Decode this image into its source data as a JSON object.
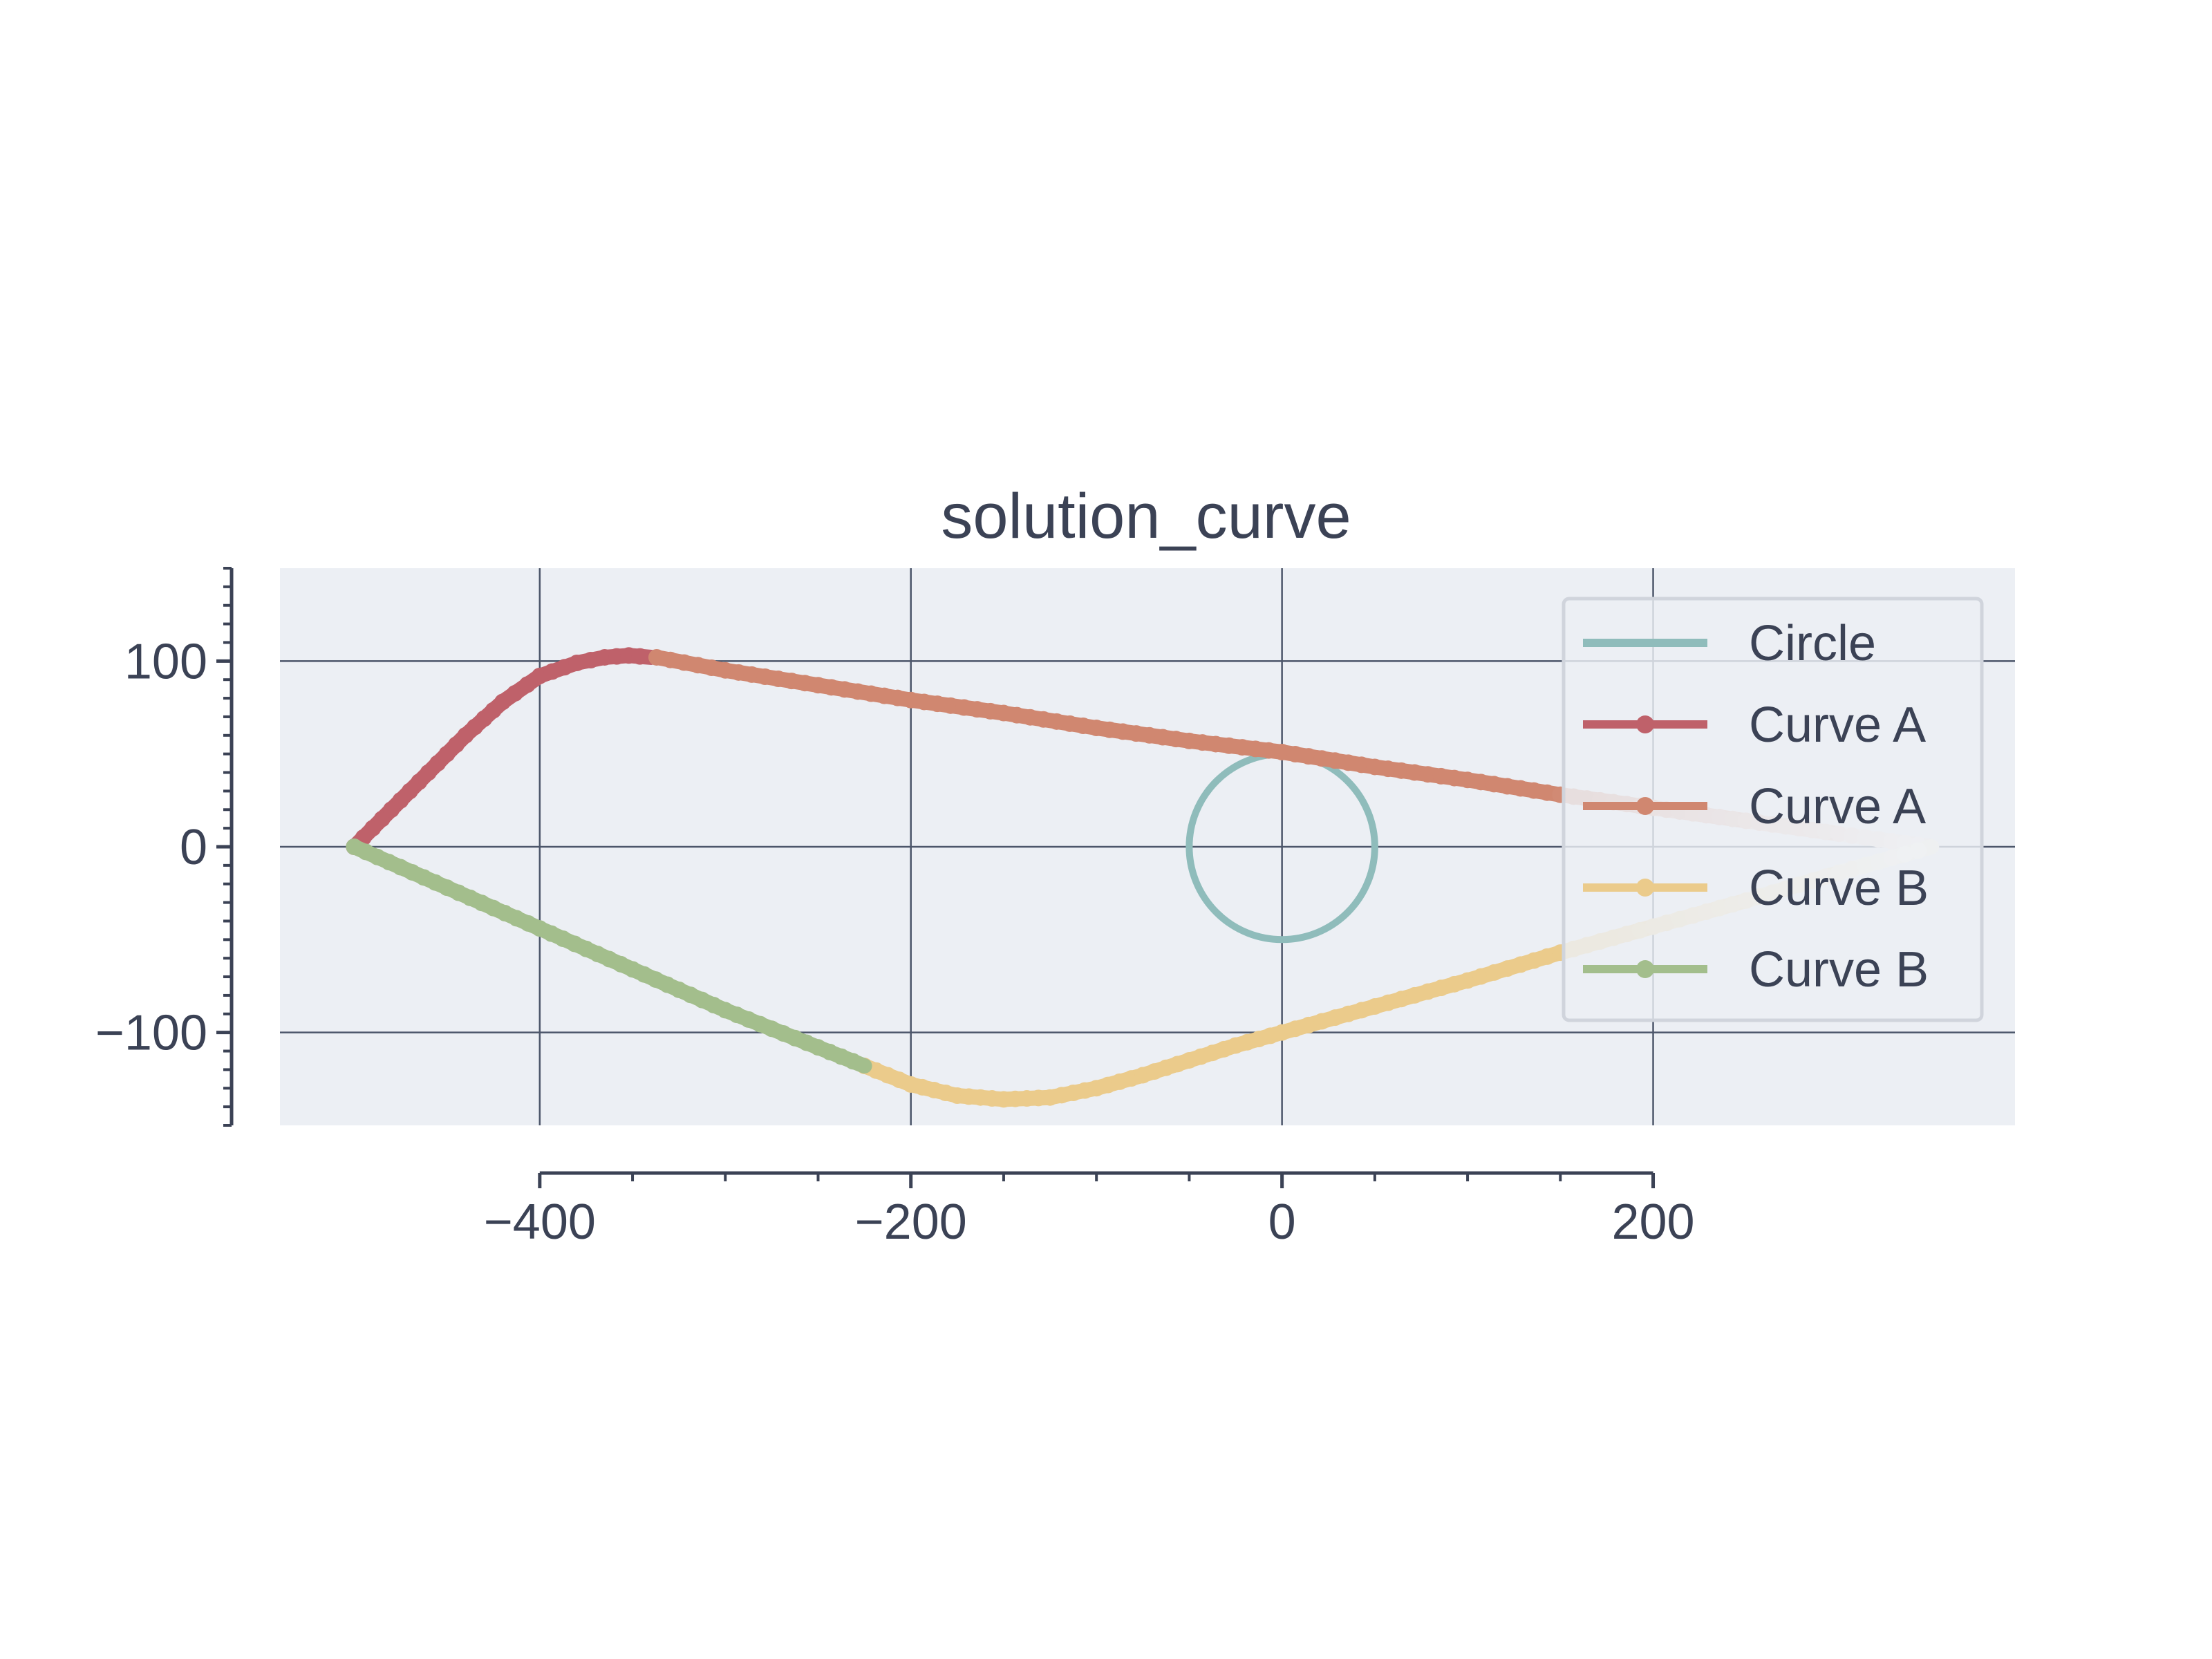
{
  "chart_data": {
    "type": "line",
    "title": "solution_curve",
    "xlabel": "",
    "ylabel": "",
    "xlim": [
      -540,
      395
    ],
    "ylim": [
      -150,
      150
    ],
    "grid": true,
    "aspect": "equal",
    "legend_position": "top-right",
    "x_ticks": [
      {
        "value": -400,
        "label": "−400"
      },
      {
        "value": -200,
        "label": "−200"
      },
      {
        "value": 0,
        "label": "0"
      },
      {
        "value": 200,
        "label": "200"
      }
    ],
    "y_ticks": [
      {
        "value": 100,
        "label": "100"
      },
      {
        "value": 0,
        "label": "0"
      },
      {
        "value": -100,
        "label": "−100"
      }
    ],
    "series": [
      {
        "name": "Circle",
        "color": "#8fbcbb",
        "style": "line",
        "shape": "circle",
        "center": [
          0,
          0
        ],
        "radius": 50
      },
      {
        "name": "Curve A",
        "color": "#bf616a",
        "style": "line-markers",
        "x": [
          -500,
          -480,
          -460,
          -440,
          -420,
          -400,
          -380,
          -365,
          -352,
          -340
        ],
        "y": [
          0,
          20,
          40,
          60,
          78,
          92,
          99,
          102,
          103,
          102
        ]
      },
      {
        "name": "Curve A",
        "color": "#d08770",
        "style": "line-markers",
        "fade_end": true,
        "x": [
          -337,
          -300,
          -250,
          -200,
          -150,
          -100,
          -50,
          0,
          50,
          100,
          150,
          200,
          250,
          300,
          350
        ],
        "y": [
          102,
          95,
          87,
          79,
          72,
          64,
          57,
          51,
          43,
          36,
          28,
          21,
          14,
          7,
          0
        ]
      },
      {
        "name": "Curve B",
        "color": "#ebcb8b",
        "style": "line-markers",
        "fade_end": true,
        "x": [
          -225,
          -200,
          -175,
          -150,
          -125,
          -100,
          -75,
          -50,
          -25,
          0,
          50,
          100,
          150,
          200,
          250,
          300,
          350
        ],
        "y": [
          -118,
          -128,
          -134,
          -136,
          -135,
          -130,
          -123,
          -115,
          -107,
          -100,
          -86,
          -72,
          -57,
          -43,
          -29,
          -14,
          0
        ]
      },
      {
        "name": "Curve B",
        "color": "#a3be8c",
        "style": "line-markers",
        "x": [
          -500,
          -450,
          -400,
          -350,
          -300,
          -250,
          -225
        ],
        "y": [
          0,
          -22,
          -44,
          -66,
          -88,
          -108,
          -118
        ]
      }
    ]
  }
}
